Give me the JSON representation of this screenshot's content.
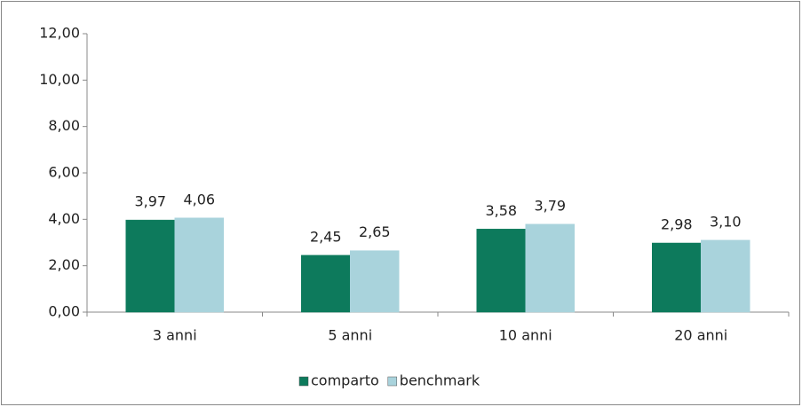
{
  "chart_data": {
    "type": "bar",
    "categories": [
      "3 anni",
      "5 anni",
      "10 anni",
      "20 anni"
    ],
    "series": [
      {
        "name": "comparto",
        "color": "#0d7a5c",
        "values": [
          3.97,
          2.45,
          3.58,
          2.98
        ],
        "value_labels": [
          "3,97",
          "2,45",
          "3,58",
          "2,98"
        ]
      },
      {
        "name": "benchmark",
        "color": "#a9d3dc",
        "values": [
          4.06,
          2.65,
          3.79,
          3.1
        ],
        "value_labels": [
          "4,06",
          "2,65",
          "3,79",
          "3,10"
        ]
      }
    ],
    "ylim": [
      0,
      12
    ],
    "yticks": [
      {
        "value": 0,
        "label": "0,00"
      },
      {
        "value": 2,
        "label": "2,00"
      },
      {
        "value": 4,
        "label": "4,00"
      },
      {
        "value": 6,
        "label": "6,00"
      },
      {
        "value": 8,
        "label": "8,00"
      },
      {
        "value": 10,
        "label": "10,00"
      },
      {
        "value": 12,
        "label": "12,00"
      }
    ],
    "legend": "bottom"
  }
}
